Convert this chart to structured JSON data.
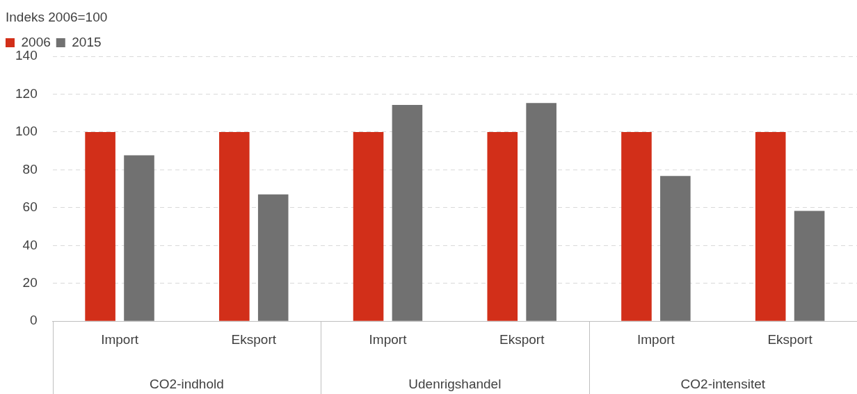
{
  "chart_data": {
    "type": "bar",
    "ylabel": "Indeks 2006=100",
    "categories": [
      "Import",
      "Eksport",
      "Import",
      "Eksport",
      "Import",
      "Eksport"
    ],
    "series": [
      {
        "name": "2006",
        "color": "#d22f19",
        "values": [
          100,
          100,
          100,
          100,
          100,
          100
        ]
      },
      {
        "name": "2015",
        "color": "#717171",
        "values": [
          87.7,
          67,
          114.3,
          115.3,
          76.7,
          58.3
        ]
      }
    ],
    "annotations": [
      "CO2-indhold",
      "Udenrigshandel",
      "CO2-intensitet"
    ],
    "ylim": [
      0,
      140
    ],
    "yticks": [
      0,
      20,
      40,
      60,
      80,
      100,
      120,
      140
    ],
    "grid": "y",
    "legend": "top left"
  }
}
